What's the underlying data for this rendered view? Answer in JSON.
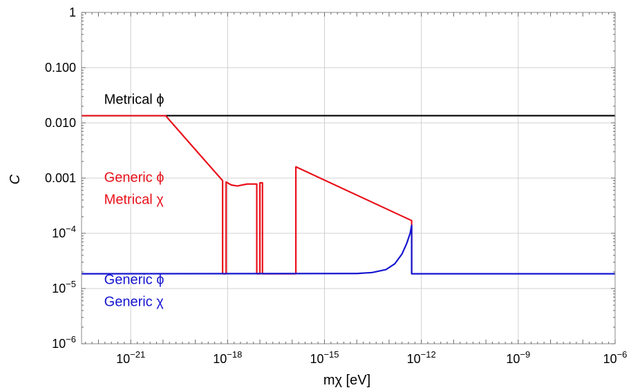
{
  "chart_data": {
    "type": "line",
    "title": "",
    "xlabel": "mχ [eV]",
    "ylabel": "C",
    "x_scale": "log",
    "y_scale": "log",
    "xlim": [
      3e-23,
      1e-06
    ],
    "ylim": [
      1e-06,
      1
    ],
    "grid": true,
    "x_ticks": [
      {
        "value": 1e-21,
        "base": "10",
        "exp": "−21"
      },
      {
        "value": 1e-18,
        "base": "10",
        "exp": "−18"
      },
      {
        "value": 1e-15,
        "base": "10",
        "exp": "−15"
      },
      {
        "value": 1e-12,
        "base": "10",
        "exp": "−12"
      },
      {
        "value": 1e-09,
        "base": "10",
        "exp": "−9"
      },
      {
        "value": 1e-06,
        "base": "10",
        "exp": "−6"
      }
    ],
    "y_ticks": [
      {
        "value": 1e-06,
        "base": "10",
        "exp": "−6"
      },
      {
        "value": 1e-05,
        "base": "10",
        "exp": "−5"
      },
      {
        "value": 0.0001,
        "base": "10",
        "exp": "−4"
      },
      {
        "value": 0.001,
        "label": "0.001"
      },
      {
        "value": 0.01,
        "label": "0.010"
      },
      {
        "value": 0.1,
        "label": "0.100"
      },
      {
        "value": 1,
        "label": "1"
      }
    ],
    "series": [
      {
        "color": "#000000",
        "points": [
          [
            3e-23,
            0.0135
          ],
          [
            1e-06,
            0.0135
          ]
        ]
      },
      {
        "color": "#e8101a",
        "points": [
          [
            3e-23,
            0.0135
          ],
          [
            1.2e-20,
            0.0135
          ],
          [
            1.5e-19,
            0.0025
          ],
          [
            7e-19,
            0.0009
          ],
          [
            7e-19,
            1.85e-05
          ],
          [
            9e-19,
            1.85e-05
          ],
          [
            9e-19,
            0.00085
          ],
          [
            1.3e-18,
            0.00075
          ],
          [
            2e-18,
            0.00072
          ],
          [
            4e-18,
            0.00078
          ],
          [
            8e-18,
            0.00078
          ],
          [
            8e-18,
            1.85e-05
          ],
          [
            1e-17,
            1.85e-05
          ],
          [
            1e-17,
            0.00082
          ],
          [
            1.2e-17,
            0.00082
          ],
          [
            1.2e-17,
            1.85e-05
          ],
          [
            1.3e-16,
            1.85e-05
          ],
          [
            1.3e-16,
            0.0016
          ],
          [
            5e-13,
            0.00017
          ],
          [
            5e-13,
            1.85e-05
          ]
        ]
      },
      {
        "color": "#1515d0",
        "points": [
          [
            3e-23,
            1.85e-05
          ],
          [
            1e-14,
            1.87e-05
          ],
          [
            3e-14,
            1.95e-05
          ],
          [
            8e-14,
            2.2e-05
          ],
          [
            1.5e-13,
            2.8e-05
          ],
          [
            2.5e-13,
            4.2e-05
          ],
          [
            3.5e-13,
            6.5e-05
          ],
          [
            4.5e-13,
            0.0001
          ],
          [
            5e-13,
            0.00014
          ],
          [
            5e-13,
            1.85e-05
          ],
          [
            1e-06,
            1.85e-05
          ]
        ]
      }
    ],
    "annotations": [
      {
        "lines": [
          "Metrical ϕ"
        ],
        "color": "#000000",
        "x": 1.5e-22,
        "y": 0.022
      },
      {
        "lines": [
          "Generic ϕ",
          "Metrical χ"
        ],
        "color": "#e8101a",
        "x": 1.5e-22,
        "y": 0.00085
      },
      {
        "lines": [
          "Generic ϕ",
          "Generic χ"
        ],
        "color": "#1515d0",
        "x": 1.5e-22,
        "y": 1.2e-05
      }
    ]
  }
}
